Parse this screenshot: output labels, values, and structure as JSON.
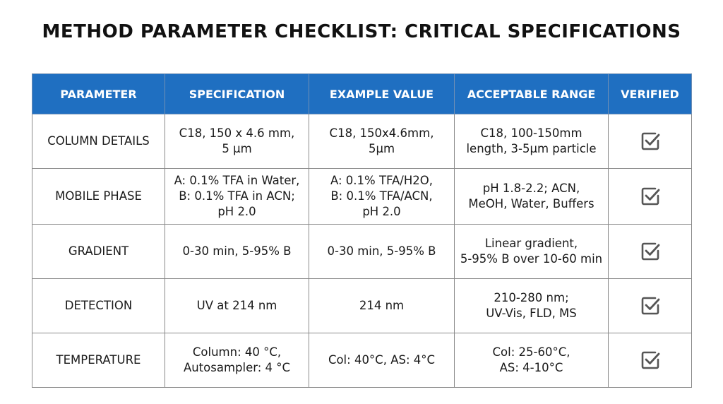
{
  "title": "METHOD PARAMETER CHECKLIST: CRITICAL SPECIFICATIONS",
  "headers": [
    "PARAMETER",
    "SPECIFICATION",
    "EXAMPLE VALUE",
    "ACCEPTABLE RANGE",
    "VERIFIED"
  ],
  "rows": [
    {
      "parameter": "COLUMN DETAILS",
      "specification": [
        "C18, 150 x 4.6 mm,",
        "5 µm"
      ],
      "example": [
        "C18, 150x4.6mm,",
        "5µm"
      ],
      "range": [
        "C18, 100-150mm",
        "length, 3-5µm particle"
      ],
      "verified_icon": "checked-box-icon"
    },
    {
      "parameter": "MOBILE PHASE",
      "specification": [
        "A: 0.1% TFA in Water,",
        "B: 0.1% TFA in ACN;",
        "pH 2.0"
      ],
      "example": [
        "A: 0.1% TFA/H2O,",
        "B: 0.1% TFA/ACN,",
        "pH 2.0"
      ],
      "range": [
        "pH 1.8-2.2; ACN,",
        "MeOH, Water, Buffers"
      ],
      "verified_icon": "checked-box-icon"
    },
    {
      "parameter": "GRADIENT",
      "specification": [
        "0-30 min, 5-95% B"
      ],
      "example": [
        "0-30 min, 5-95% B"
      ],
      "range": [
        "Linear gradient,",
        "5-95% B over 10-60 min"
      ],
      "verified_icon": "checked-box-icon"
    },
    {
      "parameter": "DETECTION",
      "specification": [
        "UV at 214 nm"
      ],
      "example": [
        "214 nm"
      ],
      "range": [
        "210-280 nm;",
        "UV-Vis, FLD, MS"
      ],
      "verified_icon": "checked-box-icon"
    },
    {
      "parameter": "TEMPERATURE",
      "specification": [
        "Column: 40 °C,",
        "Autosampler: 4 °C"
      ],
      "example": [
        "Col: 40°C, AS: 4°C"
      ],
      "range": [
        "Col: 25-60°C,",
        "AS: 4-10°C"
      ],
      "verified_icon": "checked-box-icon"
    }
  ],
  "colors": {
    "header_bg": "#1f6fc1",
    "header_text": "#ffffff",
    "border": "#8a8a8a",
    "icon": "#555555"
  }
}
